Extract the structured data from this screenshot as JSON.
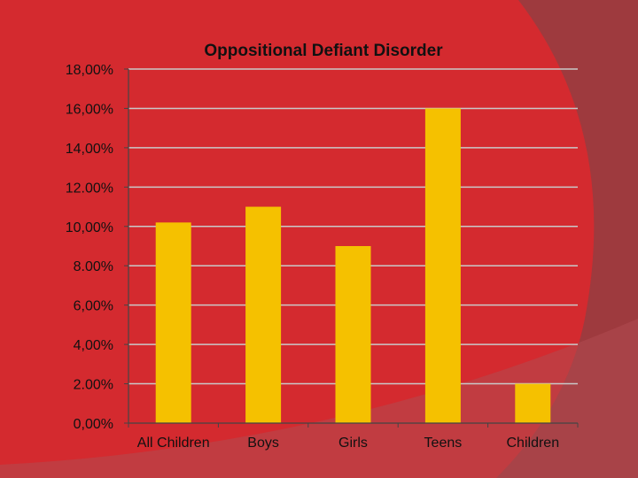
{
  "colors": {
    "background": "#d42a2f",
    "accent_panel": "#9e3a3e",
    "accent_panel_light": "#b04a50",
    "bar": "#f5c100",
    "gridline": "#c9c9c9",
    "axis": "#444444"
  },
  "chart_data": {
    "type": "bar",
    "title": "Oppositional Defiant Disorder",
    "categories": [
      "All Children",
      "Boys",
      "Girls",
      "Teens",
      "Children"
    ],
    "values": [
      10.2,
      11.0,
      9.0,
      16.0,
      2.0
    ],
    "ylim": [
      0,
      18
    ],
    "ytick_values": [
      0,
      2,
      4,
      6,
      8,
      10,
      12,
      14,
      16,
      18
    ],
    "ytick_labels": [
      "0,00%",
      "2.00%",
      "4,00%",
      "6,00%",
      "8.00%",
      "10,00%",
      "12.00%",
      "14,00%",
      "16,00%",
      "18,00%"
    ],
    "xlabel": "",
    "ylabel": "",
    "grid": true,
    "legend": "none"
  }
}
